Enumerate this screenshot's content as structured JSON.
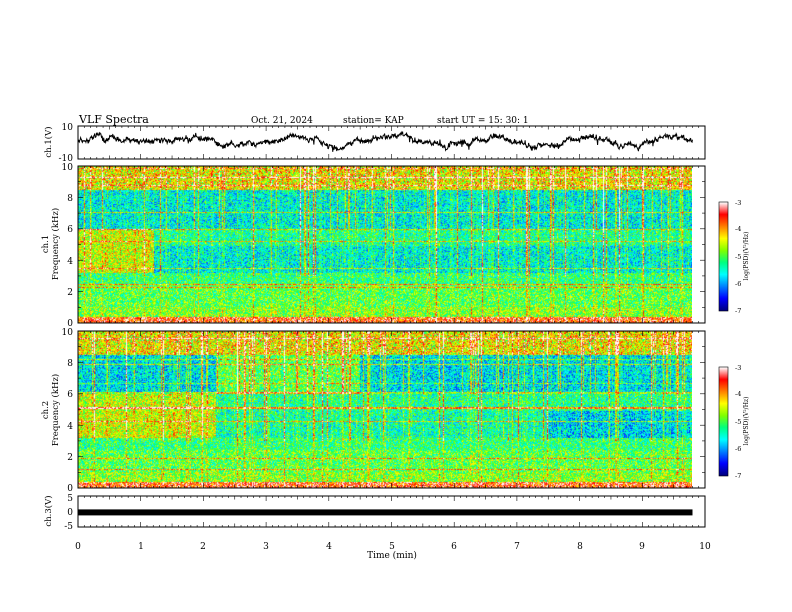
{
  "header": {
    "title": "VLF Spectra",
    "date": "Oct. 21, 2024",
    "station": "station= KAP",
    "start": "start  UT =  15: 30: 1"
  },
  "chart_data": [
    {
      "type": "line",
      "panel": "ch1-waveform",
      "ylabel": "ch.1(V)",
      "ylim": [
        -10,
        10
      ],
      "yticks": [
        "10",
        "-10"
      ],
      "xlim": [
        0,
        10
      ],
      "x_end": 9.8,
      "color": "#000000"
    },
    {
      "type": "heatmap",
      "panel": "ch1-spectrogram",
      "ylabel_top": "ch.1",
      "ylabel": "Frequency (kHz)",
      "ylim": [
        0,
        10
      ],
      "yticks": [
        "0",
        "2",
        "4",
        "6",
        "8",
        "10"
      ],
      "xlim": [
        0,
        10
      ],
      "x_end": 9.8,
      "colorbar": {
        "label": "log(PSD)(V²/Hz)",
        "range": [
          -7,
          -3
        ],
        "ticks": [
          "-3",
          "-4",
          "-5",
          "-6",
          "-7"
        ]
      }
    },
    {
      "type": "heatmap",
      "panel": "ch2-spectrogram",
      "ylabel_top": "ch.2",
      "ylabel": "Frequency (kHz)",
      "ylim": [
        0,
        10
      ],
      "yticks": [
        "0",
        "2",
        "4",
        "6",
        "8",
        "10"
      ],
      "xlim": [
        0,
        10
      ],
      "x_end": 9.8,
      "colorbar": {
        "label": "log(PSD)(V²/Hz)",
        "range": [
          -7,
          -3
        ],
        "ticks": [
          "-3",
          "-4",
          "-5",
          "-6",
          "-7"
        ]
      }
    },
    {
      "type": "line",
      "panel": "ch3-waveform",
      "ylabel": "ch.3(V)",
      "ylim": [
        -5,
        5
      ],
      "yticks": [
        "5",
        "0",
        "-5"
      ],
      "xlim": [
        0,
        10
      ],
      "x_end": 9.8,
      "baseline_value": -0.3,
      "color": "#000000"
    }
  ],
  "xaxis": {
    "label": "Time (min)",
    "ticks": [
      "0",
      "1",
      "2",
      "3",
      "4",
      "5",
      "6",
      "7",
      "8",
      "9",
      "10"
    ]
  },
  "colors": {
    "colormap": [
      "#00007f",
      "#0000ff",
      "#0080ff",
      "#00ffff",
      "#00ff80",
      "#80ff00",
      "#ffff00",
      "#ff8000",
      "#ff0000",
      "#ffffff"
    ]
  }
}
